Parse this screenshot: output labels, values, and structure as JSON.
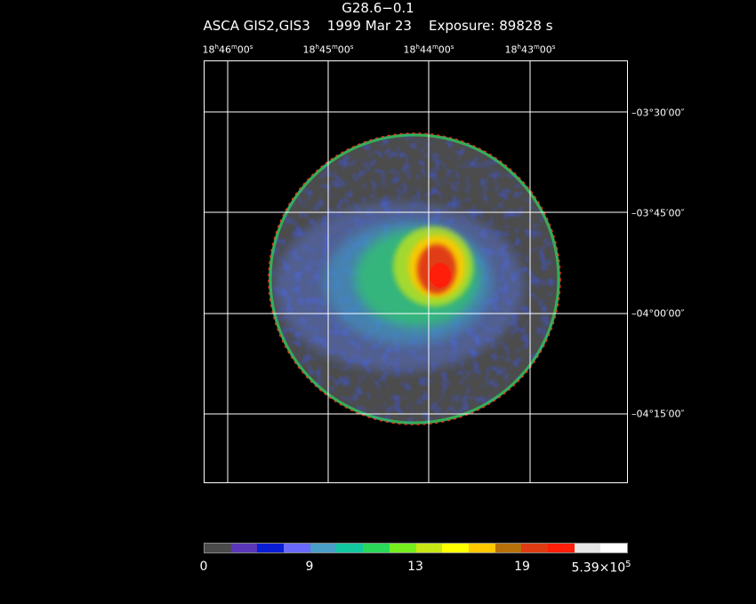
{
  "title": "G28.6−0.1",
  "subtitle": "ASCA GIS2,GIS3    1999 Mar 23    Exposure: 89828 s",
  "ra_ticks": [
    {
      "h": "18",
      "m": "46",
      "s": "00"
    },
    {
      "h": "18",
      "m": "45",
      "s": "00"
    },
    {
      "h": "18",
      "m": "44",
      "s": "00"
    },
    {
      "h": "18",
      "m": "43",
      "s": "00"
    }
  ],
  "dec_ticks": [
    "−03°30′00″",
    "−03°45′00″",
    "−04°00′00″",
    "−04°15′00″"
  ],
  "colorbar": {
    "colors": [
      "#4a4a4a",
      "#5a37b8",
      "#0a1ed6",
      "#6a6aff",
      "#4a9ec8",
      "#12c8a0",
      "#2ad85a",
      "#76ee1e",
      "#c8e614",
      "#ffff00",
      "#ffc800",
      "#b8700a",
      "#e03c14",
      "#ff1e0a",
      "#e6e6e6",
      "#ffffff"
    ],
    "labels": [
      {
        "text": "0"
      },
      {
        "text": "9"
      },
      {
        "text": "13"
      },
      {
        "text": "19"
      },
      {
        "base": "5.39×10",
        "exp": "5"
      }
    ]
  }
}
